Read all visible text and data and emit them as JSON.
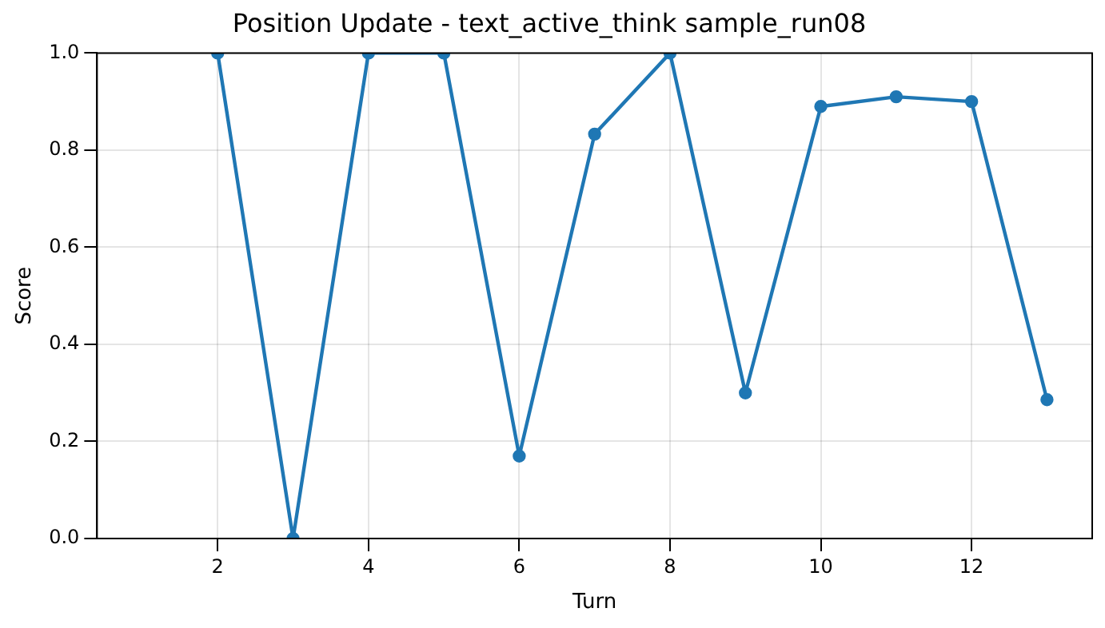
{
  "chart_data": {
    "type": "line",
    "title": "Position Update - text_active_think sample_run08",
    "xlabel": "Turn",
    "ylabel": "Score",
    "x": [
      2,
      3,
      4,
      5,
      6,
      7,
      8,
      9,
      10,
      11,
      12,
      13
    ],
    "series": [
      {
        "color": "#1f77b4",
        "values": [
          1.0,
          0.0,
          1.0,
          1.0,
          0.17,
          0.833,
          1.0,
          0.3,
          0.89,
          0.91,
          0.9,
          0.286
        ]
      }
    ],
    "xlim": [
      0.4,
      13.6
    ],
    "xticks": [
      2,
      4,
      6,
      8,
      10,
      12
    ],
    "ylim": [
      0,
      1
    ],
    "yticks": [
      {
        "value": 0,
        "label": "0.0"
      },
      0.2,
      0.4,
      0.6,
      0.8,
      {
        "value": 1,
        "label": "1.0"
      }
    ],
    "grid": true,
    "marker": "circle",
    "line_style": "solid",
    "legend": false
  }
}
